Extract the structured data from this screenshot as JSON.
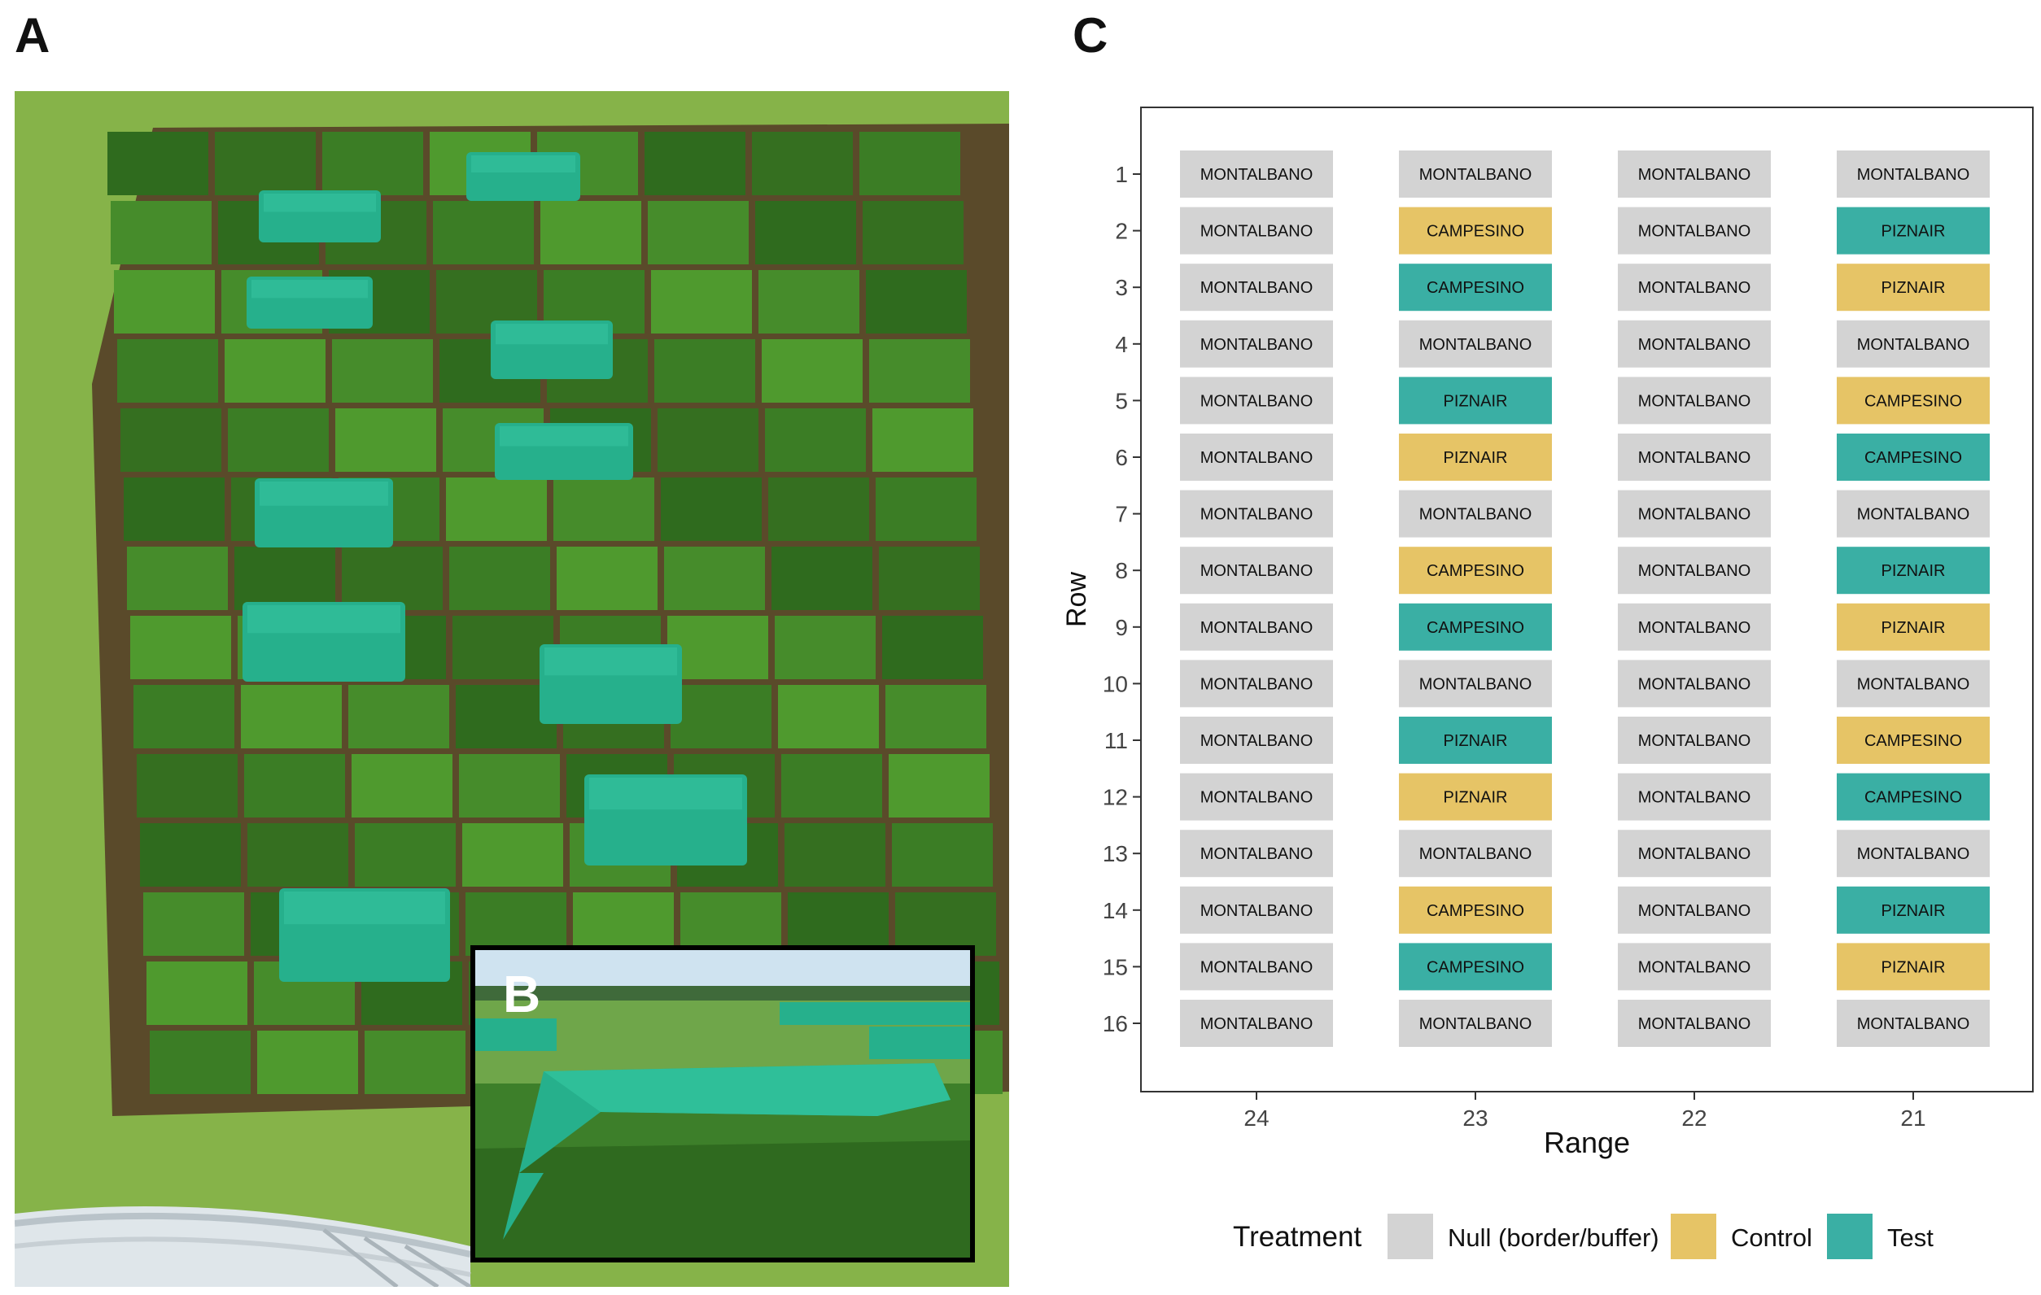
{
  "figure": {
    "panel_a_label": "A",
    "panel_b_label": "B",
    "panel_c_label": "C"
  },
  "colors": {
    "null": "#d3d3d3",
    "control": "#e6c466",
    "test": "#3aafa4",
    "cover": "#26b08c",
    "crop_dark": "#2f6b1e",
    "crop_light": "#4f9a2e",
    "grass": "#86b349"
  },
  "chart_data": {
    "type": "heatmap",
    "title": "",
    "xlabel": "Range",
    "ylabel": "Row",
    "x_categories": [
      "24",
      "23",
      "22",
      "21"
    ],
    "y_categories": [
      "1",
      "2",
      "3",
      "4",
      "5",
      "6",
      "7",
      "8",
      "9",
      "10",
      "11",
      "12",
      "13",
      "14",
      "15",
      "16"
    ],
    "legend": {
      "title": "Treatment",
      "position": "bottom",
      "entries": [
        {
          "key": "null",
          "label": "Null (border/buffer)"
        },
        {
          "key": "control",
          "label": "Control"
        },
        {
          "key": "test",
          "label": "Test"
        }
      ]
    },
    "cells": [
      {
        "range": "24",
        "row": 1,
        "label": "MONTALBANO",
        "treatment": "null"
      },
      {
        "range": "23",
        "row": 1,
        "label": "MONTALBANO",
        "treatment": "null"
      },
      {
        "range": "22",
        "row": 1,
        "label": "MONTALBANO",
        "treatment": "null"
      },
      {
        "range": "21",
        "row": 1,
        "label": "MONTALBANO",
        "treatment": "null"
      },
      {
        "range": "24",
        "row": 2,
        "label": "MONTALBANO",
        "treatment": "null"
      },
      {
        "range": "23",
        "row": 2,
        "label": "CAMPESINO",
        "treatment": "control"
      },
      {
        "range": "22",
        "row": 2,
        "label": "MONTALBANO",
        "treatment": "null"
      },
      {
        "range": "21",
        "row": 2,
        "label": "PIZNAIR",
        "treatment": "test"
      },
      {
        "range": "24",
        "row": 3,
        "label": "MONTALBANO",
        "treatment": "null"
      },
      {
        "range": "23",
        "row": 3,
        "label": "CAMPESINO",
        "treatment": "test"
      },
      {
        "range": "22",
        "row": 3,
        "label": "MONTALBANO",
        "treatment": "null"
      },
      {
        "range": "21",
        "row": 3,
        "label": "PIZNAIR",
        "treatment": "control"
      },
      {
        "range": "24",
        "row": 4,
        "label": "MONTALBANO",
        "treatment": "null"
      },
      {
        "range": "23",
        "row": 4,
        "label": "MONTALBANO",
        "treatment": "null"
      },
      {
        "range": "22",
        "row": 4,
        "label": "MONTALBANO",
        "treatment": "null"
      },
      {
        "range": "21",
        "row": 4,
        "label": "MONTALBANO",
        "treatment": "null"
      },
      {
        "range": "24",
        "row": 5,
        "label": "MONTALBANO",
        "treatment": "null"
      },
      {
        "range": "23",
        "row": 5,
        "label": "PIZNAIR",
        "treatment": "test"
      },
      {
        "range": "22",
        "row": 5,
        "label": "MONTALBANO",
        "treatment": "null"
      },
      {
        "range": "21",
        "row": 5,
        "label": "CAMPESINO",
        "treatment": "control"
      },
      {
        "range": "24",
        "row": 6,
        "label": "MONTALBANO",
        "treatment": "null"
      },
      {
        "range": "23",
        "row": 6,
        "label": "PIZNAIR",
        "treatment": "control"
      },
      {
        "range": "22",
        "row": 6,
        "label": "MONTALBANO",
        "treatment": "null"
      },
      {
        "range": "21",
        "row": 6,
        "label": "CAMPESINO",
        "treatment": "test"
      },
      {
        "range": "24",
        "row": 7,
        "label": "MONTALBANO",
        "treatment": "null"
      },
      {
        "range": "23",
        "row": 7,
        "label": "MONTALBANO",
        "treatment": "null"
      },
      {
        "range": "22",
        "row": 7,
        "label": "MONTALBANO",
        "treatment": "null"
      },
      {
        "range": "21",
        "row": 7,
        "label": "MONTALBANO",
        "treatment": "null"
      },
      {
        "range": "24",
        "row": 8,
        "label": "MONTALBANO",
        "treatment": "null"
      },
      {
        "range": "23",
        "row": 8,
        "label": "CAMPESINO",
        "treatment": "control"
      },
      {
        "range": "22",
        "row": 8,
        "label": "MONTALBANO",
        "treatment": "null"
      },
      {
        "range": "21",
        "row": 8,
        "label": "PIZNAIR",
        "treatment": "test"
      },
      {
        "range": "24",
        "row": 9,
        "label": "MONTALBANO",
        "treatment": "null"
      },
      {
        "range": "23",
        "row": 9,
        "label": "CAMPESINO",
        "treatment": "test"
      },
      {
        "range": "22",
        "row": 9,
        "label": "MONTALBANO",
        "treatment": "null"
      },
      {
        "range": "21",
        "row": 9,
        "label": "PIZNAIR",
        "treatment": "control"
      },
      {
        "range": "24",
        "row": 10,
        "label": "MONTALBANO",
        "treatment": "null"
      },
      {
        "range": "23",
        "row": 10,
        "label": "MONTALBANO",
        "treatment": "null"
      },
      {
        "range": "22",
        "row": 10,
        "label": "MONTALBANO",
        "treatment": "null"
      },
      {
        "range": "21",
        "row": 10,
        "label": "MONTALBANO",
        "treatment": "null"
      },
      {
        "range": "24",
        "row": 11,
        "label": "MONTALBANO",
        "treatment": "null"
      },
      {
        "range": "23",
        "row": 11,
        "label": "PIZNAIR",
        "treatment": "test"
      },
      {
        "range": "22",
        "row": 11,
        "label": "MONTALBANO",
        "treatment": "null"
      },
      {
        "range": "21",
        "row": 11,
        "label": "CAMPESINO",
        "treatment": "control"
      },
      {
        "range": "24",
        "row": 12,
        "label": "MONTALBANO",
        "treatment": "null"
      },
      {
        "range": "23",
        "row": 12,
        "label": "PIZNAIR",
        "treatment": "control"
      },
      {
        "range": "22",
        "row": 12,
        "label": "MONTALBANO",
        "treatment": "null"
      },
      {
        "range": "21",
        "row": 12,
        "label": "CAMPESINO",
        "treatment": "test"
      },
      {
        "range": "24",
        "row": 13,
        "label": "MONTALBANO",
        "treatment": "null"
      },
      {
        "range": "23",
        "row": 13,
        "label": "MONTALBANO",
        "treatment": "null"
      },
      {
        "range": "22",
        "row": 13,
        "label": "MONTALBANO",
        "treatment": "null"
      },
      {
        "range": "21",
        "row": 13,
        "label": "MONTALBANO",
        "treatment": "null"
      },
      {
        "range": "24",
        "row": 14,
        "label": "MONTALBANO",
        "treatment": "null"
      },
      {
        "range": "23",
        "row": 14,
        "label": "CAMPESINO",
        "treatment": "control"
      },
      {
        "range": "22",
        "row": 14,
        "label": "MONTALBANO",
        "treatment": "null"
      },
      {
        "range": "21",
        "row": 14,
        "label": "PIZNAIR",
        "treatment": "test"
      },
      {
        "range": "24",
        "row": 15,
        "label": "MONTALBANO",
        "treatment": "null"
      },
      {
        "range": "23",
        "row": 15,
        "label": "CAMPESINO",
        "treatment": "test"
      },
      {
        "range": "22",
        "row": 15,
        "label": "MONTALBANO",
        "treatment": "null"
      },
      {
        "range": "21",
        "row": 15,
        "label": "PIZNAIR",
        "treatment": "control"
      },
      {
        "range": "24",
        "row": 16,
        "label": "MONTALBANO",
        "treatment": "null"
      },
      {
        "range": "23",
        "row": 16,
        "label": "MONTALBANO",
        "treatment": "null"
      },
      {
        "range": "22",
        "row": 16,
        "label": "MONTALBANO",
        "treatment": "null"
      },
      {
        "range": "21",
        "row": 16,
        "label": "MONTALBANO",
        "treatment": "null"
      }
    ]
  }
}
